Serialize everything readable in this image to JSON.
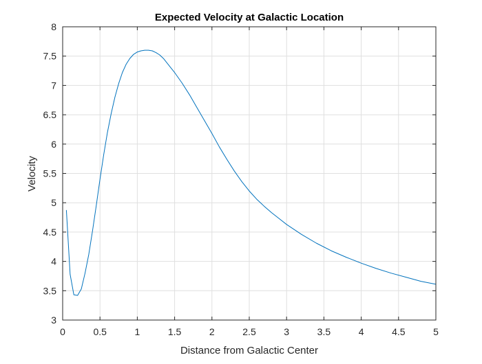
{
  "chart_data": {
    "type": "line",
    "title": "Expected Velocity at Galactic Location",
    "xlabel": "Distance from Galactic Center",
    "ylabel": "Velocity",
    "xlim": [
      0,
      5
    ],
    "ylim": [
      3,
      8
    ],
    "xticks": [
      "0",
      "0.5",
      "1",
      "1.5",
      "2",
      "2.5",
      "3",
      "3.5",
      "4",
      "4.5",
      "5"
    ],
    "yticks": [
      "3",
      "3.5",
      "4",
      "4.5",
      "5",
      "5.5",
      "6",
      "6.5",
      "7",
      "7.5",
      "8"
    ],
    "grid": true,
    "line_color": "#0072BD",
    "series": [
      {
        "x": [
          0.05,
          0.1,
          0.15,
          0.2,
          0.25,
          0.3,
          0.35,
          0.4,
          0.45,
          0.5,
          0.55,
          0.6,
          0.65,
          0.7,
          0.75,
          0.8,
          0.85,
          0.9,
          0.95,
          1.0,
          1.05,
          1.1,
          1.15,
          1.2,
          1.25,
          1.3,
          1.35,
          1.4,
          1.45,
          1.5,
          1.6,
          1.7,
          1.8,
          1.9,
          2.0,
          2.1,
          2.2,
          2.3,
          2.4,
          2.5,
          2.6,
          2.7,
          2.8,
          2.9,
          3.0,
          3.2,
          3.4,
          3.6,
          3.8,
          4.0,
          4.2,
          4.4,
          4.6,
          4.8,
          5.0
        ],
        "y": [
          4.87,
          3.78,
          3.43,
          3.42,
          3.53,
          3.8,
          4.12,
          4.52,
          4.95,
          5.4,
          5.82,
          6.2,
          6.52,
          6.8,
          7.03,
          7.22,
          7.36,
          7.46,
          7.53,
          7.57,
          7.59,
          7.6,
          7.6,
          7.59,
          7.56,
          7.52,
          7.46,
          7.38,
          7.3,
          7.22,
          7.04,
          6.84,
          6.62,
          6.4,
          6.18,
          5.95,
          5.74,
          5.54,
          5.36,
          5.2,
          5.06,
          4.94,
          4.83,
          4.73,
          4.63,
          4.46,
          4.31,
          4.18,
          4.07,
          3.97,
          3.88,
          3.8,
          3.73,
          3.66,
          3.61
        ]
      }
    ]
  }
}
